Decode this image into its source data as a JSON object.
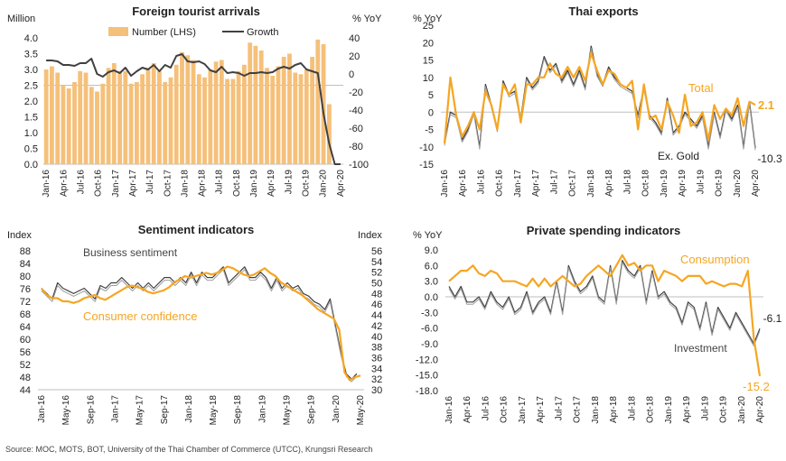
{
  "source": "Source: MOC, MOTS, BOT, University of the Thai Chamber of Commerce (UTCC), Krungsri Research",
  "colors": {
    "orange": "#F5A623",
    "bar": "#F5C07A",
    "dark": "#404040",
    "gray": "#9E9E9E",
    "axis": "#BFBFBF"
  },
  "chart_data": [
    {
      "id": "tourists",
      "type": "bar+line",
      "title": "Foreign tourist arrivals",
      "ylabel_left": "Million",
      "ylabel_right": "% YoY",
      "ylim_left": [
        0,
        4.0
      ],
      "yticks_left": [
        "0.0",
        "0.5",
        "1.0",
        "1.5",
        "2.0",
        "2.5",
        "3.0",
        "3.5",
        "4.0"
      ],
      "ylim_right": [
        -100,
        40
      ],
      "yticks_right": [
        "-100",
        "-80",
        "-60",
        "-40",
        "-20",
        "0",
        "20",
        "40"
      ],
      "x_labels": [
        "Jan-16",
        "Apr-16",
        "Jul-16",
        "Oct-16",
        "Jan-17",
        "Apr-17",
        "Jul-17",
        "Oct-17",
        "Jan-18",
        "Apr-18",
        "Jul-18",
        "Oct-18",
        "Jan-19",
        "Apr-19",
        "Jul-19",
        "Oct-19",
        "Jan-20",
        "Apr-20"
      ],
      "legend": [
        "Number (LHS)",
        "Growth"
      ],
      "series": [
        {
          "name": "Number (LHS)",
          "values": [
            3.0,
            3.1,
            2.9,
            2.5,
            2.4,
            2.6,
            2.95,
            2.9,
            2.45,
            2.3,
            2.55,
            3.05,
            3.2,
            2.95,
            2.95,
            2.55,
            2.6,
            2.85,
            3.05,
            3.2,
            2.95,
            2.6,
            2.75,
            3.15,
            3.55,
            3.45,
            3.3,
            2.85,
            2.75,
            3.0,
            3.25,
            3.3,
            2.7,
            2.7,
            2.95,
            3.15,
            3.85,
            3.75,
            3.6,
            3.05,
            2.8,
            3.1,
            3.4,
            3.5,
            2.9,
            2.85,
            3.0,
            3.4,
            3.95,
            3.8,
            1.9,
            0.02,
            0.0
          ]
        },
        {
          "name": "Growth",
          "values": [
            15,
            15,
            14,
            10,
            10,
            9,
            12,
            12,
            17,
            0,
            -3,
            2,
            4,
            1,
            7,
            -2,
            3,
            7,
            5,
            10,
            3,
            10,
            7,
            20,
            22,
            14,
            13,
            14,
            11,
            4,
            2,
            8,
            1,
            2,
            1,
            -2,
            1,
            1,
            2,
            1,
            2,
            6,
            8,
            6,
            10,
            12,
            5,
            3,
            1,
            -44,
            -77,
            -100,
            -100
          ]
        }
      ]
    },
    {
      "id": "exports",
      "type": "line",
      "title": "Thai exports",
      "ylabel": "% YoY",
      "ylim": [
        -15,
        25
      ],
      "yticks": [
        "-15",
        "-10",
        "-5",
        "0",
        "5",
        "10",
        "15",
        "20",
        "25"
      ],
      "x_labels": [
        "Jan-16",
        "Apr-16",
        "Jul-16",
        "Oct-16",
        "Jan-17",
        "Apr-17",
        "Jul-17",
        "Oct-17",
        "Jan-18",
        "Apr-18",
        "Jul-18",
        "Oct-18",
        "Jan-19",
        "Apr-19",
        "Jul-19",
        "Oct-19",
        "Jan-20",
        "Apr-20"
      ],
      "annotations": [
        "Total",
        "2.1",
        "Ex. Gold",
        "-10.3"
      ],
      "series": [
        {
          "name": "Total",
          "values": [
            -9,
            10,
            -1,
            -7,
            -4,
            0,
            -5,
            6,
            2,
            -5,
            8,
            5,
            8,
            -3,
            8,
            8,
            10,
            10,
            14,
            11,
            10,
            13,
            10,
            13,
            9,
            17,
            12,
            8,
            12,
            11,
            8,
            7,
            9,
            -5,
            8,
            -2,
            -1,
            -5,
            3,
            -1,
            -6,
            5,
            -4,
            -3,
            0,
            -8,
            2,
            -2,
            1,
            -1,
            4,
            -4,
            3,
            2.1
          ]
        },
        {
          "name": "Ex. Gold",
          "values": [
            -9,
            0,
            -1,
            -8,
            -5,
            0,
            -10,
            8,
            2,
            -5,
            9,
            5,
            6,
            -2,
            10,
            7,
            9,
            16,
            12,
            14,
            9,
            12,
            8,
            12,
            7,
            19,
            11,
            8,
            13,
            10,
            8,
            7,
            6,
            -1,
            7,
            -1,
            -3,
            -6,
            4,
            -6,
            -4,
            0,
            -2,
            -4,
            -1,
            -10,
            0,
            -7,
            1,
            -2,
            2,
            -10,
            3,
            -10.3
          ]
        }
      ]
    },
    {
      "id": "sentiment",
      "type": "line",
      "title": "Sentiment indicators",
      "ylabel_left": "Index",
      "ylabel_right": "Index",
      "ylim_left": [
        44,
        88
      ],
      "yticks_left": [
        "44",
        "48",
        "52",
        "56",
        "60",
        "64",
        "68",
        "72",
        "76",
        "80",
        "84",
        "88"
      ],
      "ylim_right": [
        30,
        56
      ],
      "yticks_right": [
        "30",
        "32",
        "34",
        "36",
        "38",
        "40",
        "42",
        "44",
        "46",
        "48",
        "50",
        "52",
        "54",
        "56"
      ],
      "x_labels": [
        "Jan-16",
        "May-16",
        "Sep-16",
        "Jan-17",
        "May-17",
        "Sep-17",
        "Jan-18",
        "May-18",
        "Sep-18",
        "Jan-19",
        "May-19",
        "Sep-19",
        "Jan-20",
        "May-20"
      ],
      "annotations": [
        "Business sentiment",
        "Consumer confidence"
      ],
      "series": [
        {
          "name": "Consumer confidence",
          "axis": "left",
          "values": [
            76,
            74,
            73,
            73,
            72,
            72,
            71.5,
            72,
            73,
            73.5,
            74,
            73,
            72.5,
            73.5,
            74.5,
            75.5,
            76.5,
            77,
            76.5,
            76,
            75,
            74.5,
            75,
            75.5,
            76.5,
            78,
            79,
            80,
            79.5,
            80,
            80.5,
            81,
            80.5,
            81,
            82,
            83,
            82.5,
            81.5,
            80.5,
            80,
            80.5,
            81.5,
            82.5,
            81,
            80,
            78,
            77,
            76,
            75,
            74,
            72.5,
            71,
            69.5,
            68.5,
            67.5,
            66.5,
            63,
            49.5,
            47,
            48,
            48.5
          ]
        },
        {
          "name": "Business sentiment",
          "axis": "right",
          "values": [
            49,
            48,
            47,
            50,
            49,
            48.5,
            48,
            48.5,
            49,
            48,
            47,
            49.5,
            49,
            50,
            50,
            51,
            50,
            49,
            50,
            49,
            50,
            49,
            50,
            51,
            51,
            50,
            51,
            50,
            52,
            50,
            52,
            51,
            51,
            52,
            53,
            50,
            51,
            52,
            53,
            51,
            51,
            52,
            51,
            49,
            51,
            49,
            50,
            49,
            49.5,
            48,
            47.5,
            46.5,
            46,
            45,
            47,
            42,
            37,
            33,
            32,
            33
          ]
        }
      ]
    },
    {
      "id": "spending",
      "type": "line",
      "title": "Private spending indicators",
      "ylabel": "% YoY",
      "ylim": [
        -18,
        9
      ],
      "yticks": [
        "-18.0",
        "-15.0",
        "-12.0",
        "-9.0",
        "-6.0",
        "-3.0",
        "0.0",
        "3.0",
        "6.0",
        "9.0"
      ],
      "x_labels": [
        "Jan-16",
        "Apr-16",
        "Jul-16",
        "Oct-16",
        "Jan-17",
        "Apr-17",
        "Jul-17",
        "Oct-17",
        "Jan-18",
        "Apr-18",
        "Jul-18",
        "Oct-18",
        "Jan-19",
        "Apr-19",
        "Jul-19",
        "Oct-19",
        "Jan-20",
        "Apr-20"
      ],
      "annotations": [
        "Consumption",
        "Investment",
        "-6.1",
        "-15.2"
      ],
      "series": [
        {
          "name": "Consumption",
          "values": [
            3,
            4,
            5,
            5,
            6,
            4.5,
            4,
            5,
            4.5,
            3,
            3,
            3,
            2.5,
            2,
            3.5,
            2,
            3.5,
            2,
            3,
            4,
            3,
            2,
            2.5,
            4,
            5,
            6,
            5,
            4,
            6,
            8,
            6,
            6.5,
            5,
            6,
            6,
            3,
            5,
            4.5,
            4,
            3,
            4,
            4,
            4,
            2.5,
            3,
            2.5,
            2,
            2.5,
            2.5,
            2,
            5,
            -8,
            -15.2
          ]
        },
        {
          "name": "Investment",
          "values": [
            2,
            0,
            2,
            -1,
            -1,
            0,
            -2,
            1,
            -1,
            -2,
            0,
            -3,
            -2,
            1,
            -3,
            -1,
            0,
            -3,
            3,
            -3,
            6,
            3,
            1,
            2,
            4,
            0,
            -1,
            6,
            -1,
            7,
            5,
            4,
            6,
            -1,
            5,
            0,
            1,
            -1,
            -2,
            -5,
            -1,
            -2,
            -6,
            -1,
            -7,
            -2,
            -4,
            -6,
            -3,
            -5,
            -7,
            -9,
            -6.1
          ]
        }
      ]
    }
  ]
}
